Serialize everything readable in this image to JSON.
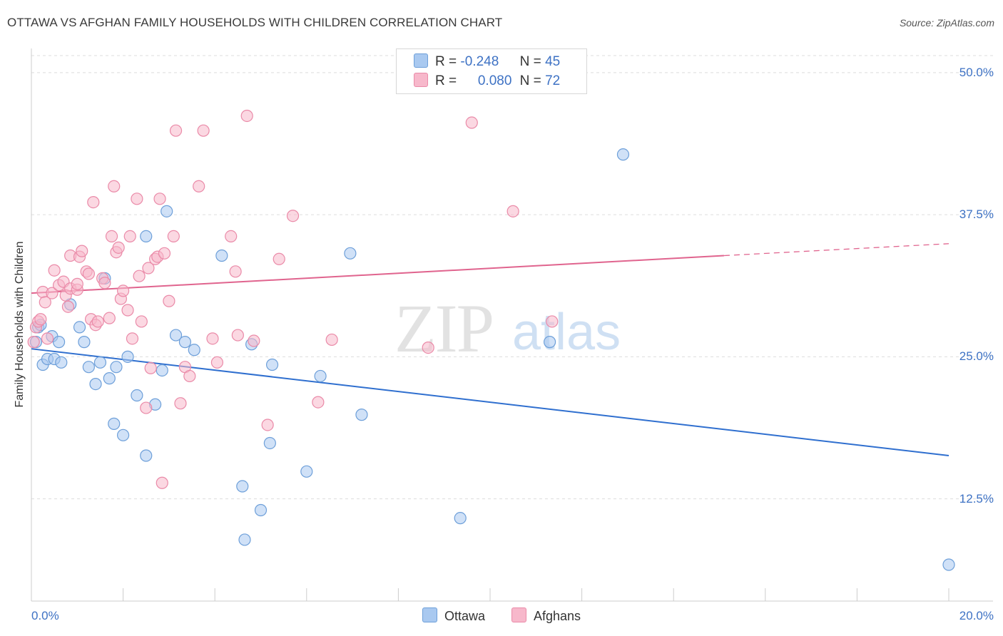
{
  "title": "OTTAWA VS AFGHAN FAMILY HOUSEHOLDS WITH CHILDREN CORRELATION CHART",
  "source": "Source: ZipAtlas.com",
  "watermark": {
    "zip": "ZIP",
    "atlas": "atlas"
  },
  "colors": {
    "ottawa_fill": "#a9c9f0",
    "ottawa_stroke": "#6d9fd9",
    "ottawa_line": "#2f6fcf",
    "afghan_fill": "#f7b8cb",
    "afghan_stroke": "#ea8aa8",
    "afghan_line": "#e0648e",
    "tick_text": "#3e72c4",
    "grid": "#dddddd"
  },
  "stats": {
    "r_label": "R =",
    "n_label": "N =",
    "ottawa": {
      "r": "-0.248",
      "n": "45"
    },
    "afghans": {
      "r": "0.080",
      "n": "72"
    }
  },
  "legend": {
    "ottawa": "Ottawa",
    "afghans": "Afghans"
  },
  "chart_data": {
    "type": "scatter",
    "title": "OTTAWA VS AFGHAN FAMILY HOUSEHOLDS WITH CHILDREN CORRELATION CHART",
    "xlabel": "",
    "ylabel": "Family Households with Children",
    "xlim": [
      0,
      20
    ],
    "ylim": [
      3.5,
      51.5
    ],
    "x_tick_labels": [
      "0.0%",
      "20.0%"
    ],
    "y_ticks": [
      12.5,
      25.0,
      37.5,
      50.0
    ],
    "y_tick_labels": [
      "12.5%",
      "25.0%",
      "37.5%",
      "50.0%"
    ],
    "grid": true,
    "legend_position": "bottom",
    "series": [
      {
        "name": "Ottawa",
        "points": [
          [
            0.1,
            26.3
          ],
          [
            0.15,
            27.6
          ],
          [
            0.25,
            24.3
          ],
          [
            0.35,
            24.8
          ],
          [
            0.45,
            26.8
          ],
          [
            0.5,
            24.8
          ],
          [
            0.6,
            26.3
          ],
          [
            0.65,
            24.5
          ],
          [
            0.85,
            29.6
          ],
          [
            1.05,
            27.6
          ],
          [
            1.15,
            26.3
          ],
          [
            1.25,
            24.1
          ],
          [
            1.4,
            22.6
          ],
          [
            1.5,
            24.5
          ],
          [
            1.6,
            31.9
          ],
          [
            1.7,
            23.1
          ],
          [
            1.8,
            19.1
          ],
          [
            1.85,
            24.1
          ],
          [
            2.0,
            18.1
          ],
          [
            2.1,
            25.0
          ],
          [
            2.3,
            21.6
          ],
          [
            2.5,
            35.6
          ],
          [
            2.5,
            16.3
          ],
          [
            2.7,
            20.8
          ],
          [
            2.85,
            23.8
          ],
          [
            2.95,
            37.8
          ],
          [
            3.15,
            26.9
          ],
          [
            3.35,
            26.3
          ],
          [
            3.55,
            25.6
          ],
          [
            4.15,
            33.9
          ],
          [
            4.6,
            13.6
          ],
          [
            4.65,
            8.9
          ],
          [
            4.8,
            26.1
          ],
          [
            5.0,
            11.5
          ],
          [
            5.2,
            17.4
          ],
          [
            5.25,
            24.3
          ],
          [
            6.0,
            14.9
          ],
          [
            6.3,
            23.3
          ],
          [
            6.95,
            34.1
          ],
          [
            7.2,
            19.9
          ],
          [
            9.35,
            10.8
          ],
          [
            11.3,
            26.3
          ],
          [
            12.9,
            42.8
          ],
          [
            20.0,
            6.7
          ],
          [
            0.2,
            27.8
          ]
        ]
      },
      {
        "name": "Afghans",
        "points": [
          [
            0.05,
            26.3
          ],
          [
            0.1,
            27.6
          ],
          [
            0.15,
            28.1
          ],
          [
            0.2,
            28.3
          ],
          [
            0.25,
            30.7
          ],
          [
            0.3,
            29.8
          ],
          [
            0.35,
            26.6
          ],
          [
            0.45,
            30.6
          ],
          [
            0.5,
            32.6
          ],
          [
            0.6,
            31.3
          ],
          [
            0.7,
            31.6
          ],
          [
            0.75,
            30.4
          ],
          [
            0.8,
            29.4
          ],
          [
            0.85,
            31.0
          ],
          [
            0.85,
            33.9
          ],
          [
            1.0,
            30.9
          ],
          [
            1.0,
            31.4
          ],
          [
            1.05,
            33.8
          ],
          [
            1.1,
            34.3
          ],
          [
            1.2,
            32.5
          ],
          [
            1.25,
            32.3
          ],
          [
            1.3,
            28.3
          ],
          [
            1.35,
            38.6
          ],
          [
            1.4,
            27.8
          ],
          [
            1.45,
            28.1
          ],
          [
            1.55,
            31.9
          ],
          [
            1.6,
            31.5
          ],
          [
            1.7,
            28.4
          ],
          [
            1.75,
            35.6
          ],
          [
            1.8,
            40.0
          ],
          [
            1.85,
            34.2
          ],
          [
            1.9,
            34.6
          ],
          [
            1.95,
            30.1
          ],
          [
            2.0,
            30.8
          ],
          [
            2.1,
            29.1
          ],
          [
            2.15,
            35.6
          ],
          [
            2.2,
            26.6
          ],
          [
            2.3,
            38.9
          ],
          [
            2.35,
            32.1
          ],
          [
            2.4,
            28.1
          ],
          [
            2.5,
            20.5
          ],
          [
            2.55,
            32.8
          ],
          [
            2.6,
            24.0
          ],
          [
            2.7,
            33.6
          ],
          [
            2.75,
            33.8
          ],
          [
            2.8,
            38.9
          ],
          [
            2.85,
            13.9
          ],
          [
            2.9,
            34.1
          ],
          [
            3.0,
            29.9
          ],
          [
            3.1,
            35.6
          ],
          [
            3.15,
            44.9
          ],
          [
            3.25,
            20.9
          ],
          [
            3.35,
            24.1
          ],
          [
            3.45,
            23.3
          ],
          [
            3.65,
            40.0
          ],
          [
            3.75,
            44.9
          ],
          [
            3.95,
            26.6
          ],
          [
            4.05,
            24.5
          ],
          [
            4.35,
            35.6
          ],
          [
            4.45,
            32.5
          ],
          [
            4.5,
            26.9
          ],
          [
            4.7,
            46.2
          ],
          [
            4.85,
            26.4
          ],
          [
            5.15,
            19.0
          ],
          [
            5.4,
            33.6
          ],
          [
            5.7,
            37.4
          ],
          [
            6.25,
            21.0
          ],
          [
            6.55,
            26.5
          ],
          [
            8.65,
            25.8
          ],
          [
            9.6,
            45.6
          ],
          [
            10.5,
            37.8
          ],
          [
            11.35,
            28.1
          ]
        ]
      }
    ],
    "trend_lines": [
      {
        "series": "Ottawa",
        "x": [
          0,
          20
        ],
        "y": [
          25.7,
          16.3
        ],
        "style": "solid"
      },
      {
        "series": "Afghans",
        "x": [
          0,
          15.1
        ],
        "y": [
          30.6,
          33.9
        ],
        "style": "solid"
      },
      {
        "series": "Afghans",
        "x": [
          15.1,
          20
        ],
        "y": [
          33.9,
          34.95
        ],
        "style": "dashed"
      }
    ]
  }
}
